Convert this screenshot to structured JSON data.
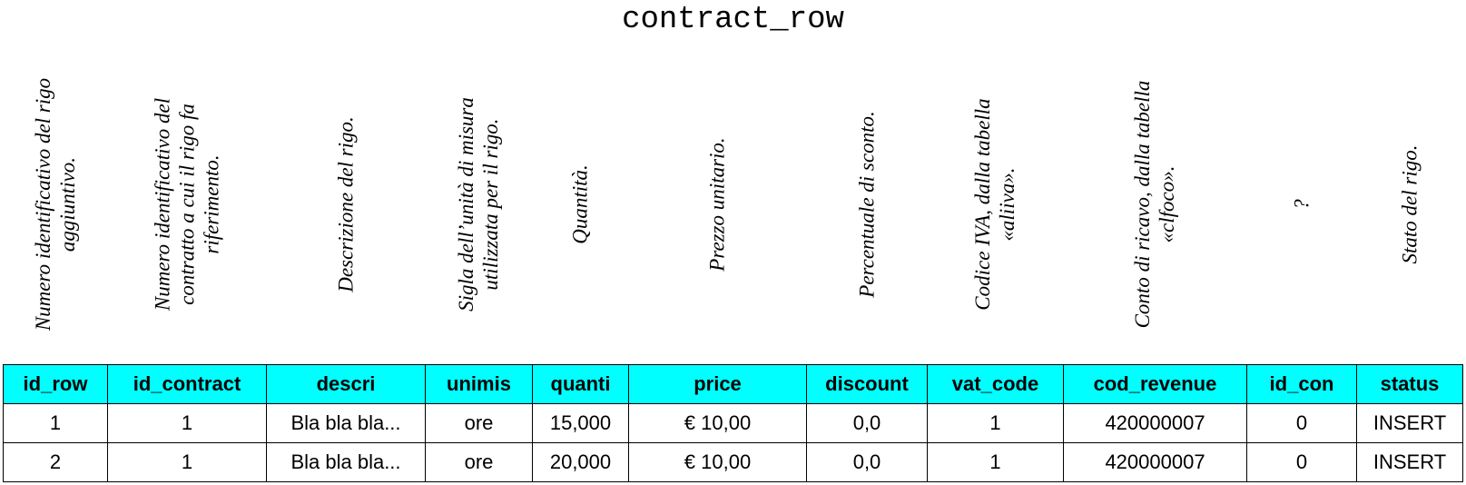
{
  "title": "contract_row",
  "columns": [
    {
      "name": "id_row",
      "note": "Numero identificativo del rigo aggiuntivo."
    },
    {
      "name": "id_contract",
      "note": "Numero identificativo del contratto a cui il rigo fa riferimento."
    },
    {
      "name": "descri",
      "note": "Descrizione del rigo."
    },
    {
      "name": "unimis",
      "note": "Sigla dell’unità di misura utilizzata per il rigo."
    },
    {
      "name": "quanti",
      "note": "Quantità."
    },
    {
      "name": "price",
      "note": "Prezzo unitario."
    },
    {
      "name": "discount",
      "note": "Percentuale di sconto."
    },
    {
      "name": "vat_code",
      "note": "Codice IVA, dalla tabella «aliiva»."
    },
    {
      "name": "cod_revenue",
      "note": "Conto di ricavo, dalla tabella «clfoco»."
    },
    {
      "name": "id_con",
      "note": "?"
    },
    {
      "name": "status",
      "note": "Stato del rigo."
    }
  ],
  "rows": [
    [
      "1",
      "1",
      "Bla bla bla...",
      "ore",
      "15,000",
      "€ 10,00",
      "0,0",
      "1",
      "420000007",
      "0",
      "INSERT"
    ],
    [
      "2",
      "1",
      "Bla bla bla...",
      "ore",
      "20,000",
      "€ 10,00",
      "0,0",
      "1",
      "420000007",
      "0",
      "INSERT"
    ]
  ],
  "colors": {
    "header_background": "#00ffff",
    "border": "#000000"
  }
}
